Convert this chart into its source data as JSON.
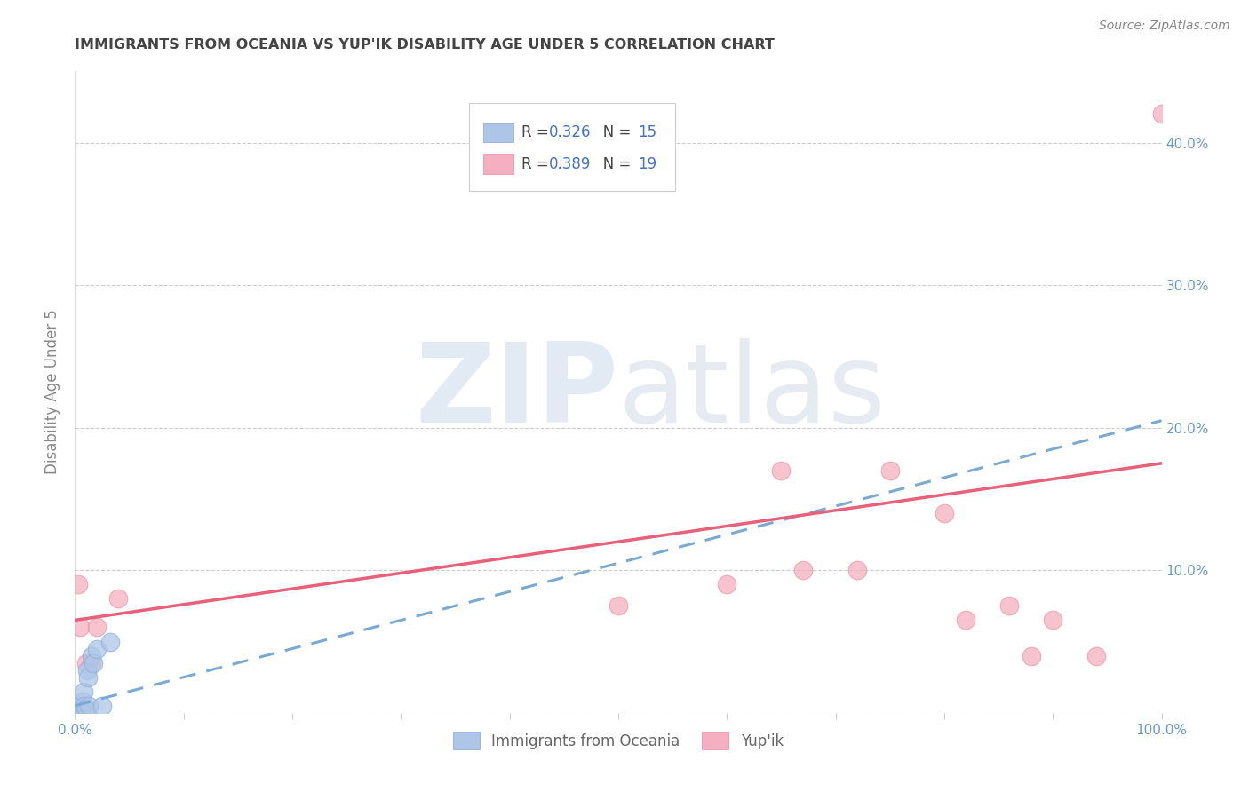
{
  "title": "IMMIGRANTS FROM OCEANIA VS YUP'IK DISABILITY AGE UNDER 5 CORRELATION CHART",
  "source": "Source: ZipAtlas.com",
  "ylabel": "Disability Age Under 5",
  "xlim": [
    0,
    1.0
  ],
  "ylim": [
    0,
    0.45
  ],
  "xticks": [
    0.0,
    0.1,
    0.2,
    0.3,
    0.4,
    0.5,
    0.6,
    0.7,
    0.8,
    0.9,
    1.0
  ],
  "xticklabels": [
    "0.0%",
    "",
    "",
    "",
    "",
    "",
    "",
    "",
    "",
    "",
    "100.0%"
  ],
  "yticks": [
    0.0,
    0.1,
    0.2,
    0.3,
    0.4
  ],
  "yticklabels": [
    "",
    "10.0%",
    "20.0%",
    "30.0%",
    "40.0%"
  ],
  "blue_R": "0.326",
  "blue_N": "15",
  "pink_R": "0.389",
  "pink_N": "19",
  "blue_scatter_x": [
    0.003,
    0.005,
    0.006,
    0.007,
    0.008,
    0.009,
    0.01,
    0.011,
    0.012,
    0.013,
    0.015,
    0.017,
    0.02,
    0.025,
    0.032
  ],
  "blue_scatter_y": [
    0.003,
    0.005,
    0.003,
    0.008,
    0.015,
    0.005,
    0.003,
    0.03,
    0.025,
    0.005,
    0.04,
    0.035,
    0.045,
    0.005,
    0.05
  ],
  "pink_scatter_x": [
    0.003,
    0.005,
    0.01,
    0.015,
    0.02,
    0.04,
    0.5,
    0.6,
    0.65,
    0.67,
    0.72,
    0.75,
    0.8,
    0.82,
    0.86,
    0.88,
    0.9,
    0.94,
    1.0
  ],
  "pink_scatter_y": [
    0.09,
    0.06,
    0.035,
    0.035,
    0.06,
    0.08,
    0.075,
    0.09,
    0.17,
    0.1,
    0.1,
    0.17,
    0.14,
    0.065,
    0.075,
    0.04,
    0.065,
    0.04,
    0.42
  ],
  "blue_line_x": [
    0.0,
    1.0
  ],
  "blue_line_y": [
    0.005,
    0.205
  ],
  "pink_line_x": [
    0.0,
    1.0
  ],
  "pink_line_y": [
    0.065,
    0.175
  ],
  "watermark_zip": "ZIP",
  "watermark_atlas": "atlas",
  "background_color": "#ffffff",
  "blue_color": "#adc6e8",
  "pink_color": "#f5afc0",
  "blue_scatter_edge": "#90afd8",
  "pink_scatter_edge": "#e898aa",
  "blue_line_color": "#7aaad4",
  "pink_line_color": "#e8607a",
  "grid_color": "#cccccc",
  "title_color": "#444444",
  "axis_label_color": "#888888",
  "tick_color": "#6699cc",
  "legend_blue_color": "#4472c4",
  "legend_text_color": "#444444",
  "source_color": "#888888"
}
